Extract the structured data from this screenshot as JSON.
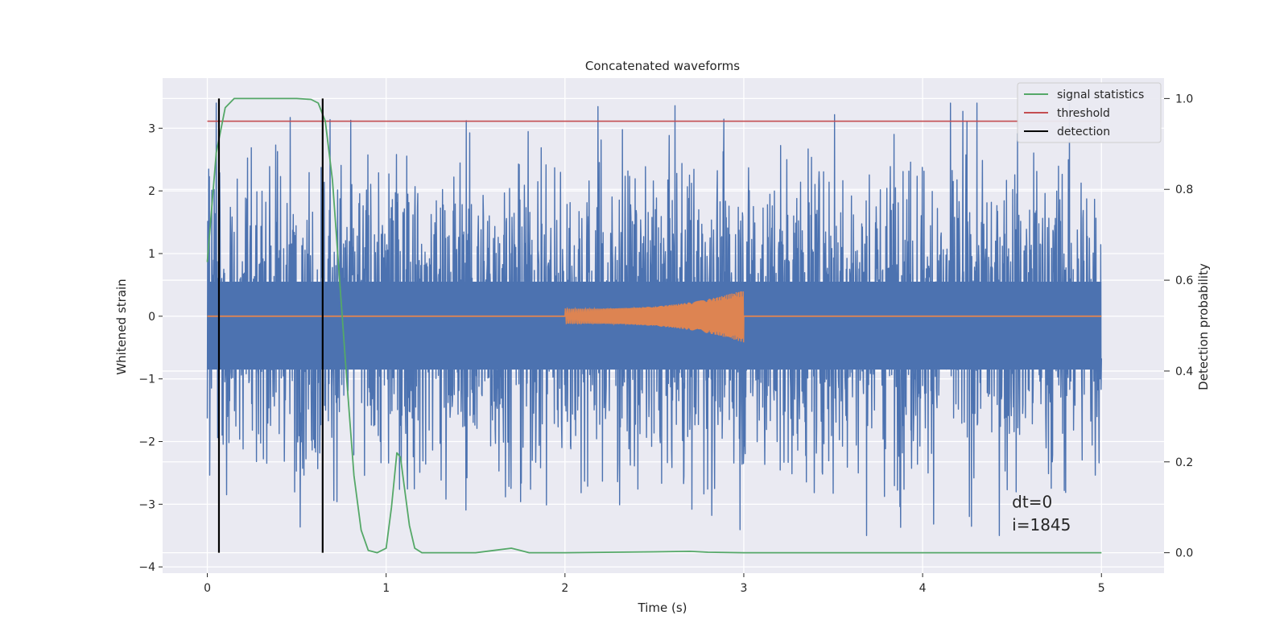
{
  "chart_data": {
    "type": "line",
    "title": "Concatenated waveforms",
    "xlabel": "Time (s)",
    "ylabel": "Whitened strain",
    "y2label": "Detection probability",
    "xlim": [
      -0.25,
      5.35
    ],
    "ylim": [
      -4.1,
      3.8
    ],
    "y2lim": [
      -0.045,
      1.045
    ],
    "xticks": [
      0,
      1,
      2,
      3,
      4,
      5
    ],
    "xtick_labels": [
      "0",
      "1",
      "2",
      "3",
      "4",
      "5"
    ],
    "yticks": [
      -4,
      -3,
      -2,
      -1,
      0,
      1,
      2,
      3
    ],
    "ytick_labels": [
      "−4",
      "−3",
      "−2",
      "−1",
      "0",
      "1",
      "2",
      "3"
    ],
    "y2ticks": [
      0.0,
      0.2,
      0.4,
      0.6,
      0.8,
      1.0
    ],
    "y2tick_labels": [
      "0.0",
      "0.2",
      "0.4",
      "0.6",
      "0.8",
      "1.0"
    ],
    "grid": true,
    "legend_position": "top-right",
    "series": [
      {
        "id": "noise",
        "axis": "left",
        "color": "#4c72b0",
        "note_values": "dense whitened noise 0–5 s, amplitude mostly within ±2, peaks to about ±3.5",
        "x_range": [
          0,
          5
        ],
        "typical_amplitude": 1.6,
        "peak_values": [
          3.43,
          -3.5
        ]
      },
      {
        "id": "injected-signal",
        "axis": "left",
        "color": "#dd8452",
        "x": [
          0,
          2,
          2.25,
          2.5,
          2.75,
          3,
          5
        ],
        "envelope": [
          0,
          0.12,
          0.16,
          0.2,
          0.28,
          0.42,
          0
        ]
      },
      {
        "name": "signal statistics",
        "axis": "right",
        "color": "#55a868",
        "x": [
          0,
          0.05,
          0.1,
          0.15,
          0.2,
          0.3,
          0.5,
          0.58,
          0.62,
          0.66,
          0.7,
          0.74,
          0.78,
          0.82,
          0.86,
          0.9,
          0.95,
          1.0,
          1.03,
          1.06,
          1.08,
          1.1,
          1.13,
          1.16,
          1.2,
          1.3,
          1.5,
          1.6,
          1.7,
          1.75,
          1.8,
          2.0,
          2.5,
          2.7,
          2.8,
          3.0,
          4.0,
          5.0
        ],
        "y": [
          0.64,
          0.88,
          0.98,
          1.0,
          1.0,
          1.0,
          1.0,
          0.998,
          0.99,
          0.95,
          0.82,
          0.6,
          0.38,
          0.17,
          0.05,
          0.005,
          0.0,
          0.01,
          0.1,
          0.22,
          0.21,
          0.15,
          0.06,
          0.01,
          0.0,
          0.0,
          0.0,
          0.005,
          0.01,
          0.005,
          0.0,
          0.0,
          0.002,
          0.003,
          0.001,
          0.0,
          0.0,
          0.0
        ]
      },
      {
        "name": "threshold",
        "axis": "right",
        "color": "#c44e52",
        "x": [
          0,
          5
        ],
        "y": [
          0.95,
          0.95
        ]
      },
      {
        "name": "detection",
        "axis": "right",
        "color": "#000000",
        "type": "vline",
        "x": [
          0.065,
          0.645
        ],
        "y": [
          0.0,
          1.0
        ]
      }
    ],
    "annotations": [
      {
        "text": "dt=0",
        "x": 4.5,
        "y": -3.05
      },
      {
        "text": "i=1845",
        "x": 4.5,
        "y": -3.42
      }
    ]
  }
}
